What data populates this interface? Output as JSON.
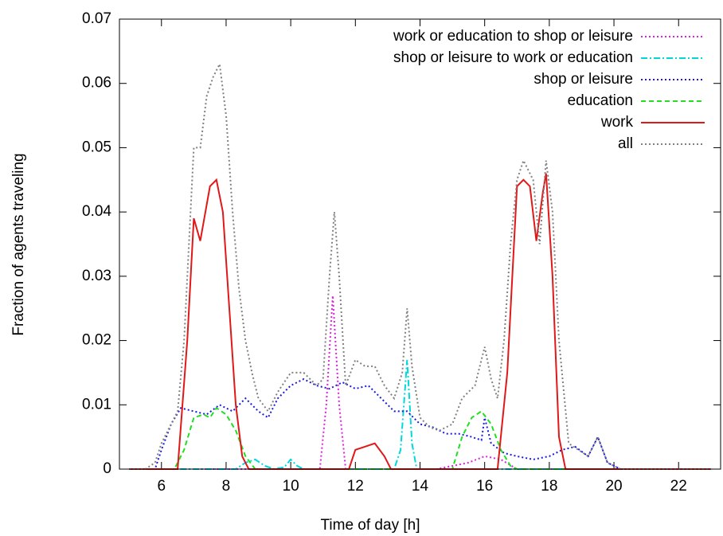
{
  "chart_data": {
    "type": "line",
    "xlabel": "Time of day [h]",
    "ylabel": "Fraction of agents traveling",
    "xlim": [
      4.7,
      23.3
    ],
    "ylim": [
      0,
      0.07
    ],
    "xticks": [
      6,
      8,
      10,
      12,
      14,
      16,
      18,
      20,
      22
    ],
    "yticks": [
      0,
      0.01,
      0.02,
      0.03,
      0.04,
      0.05,
      0.06,
      0.07
    ],
    "legend": "top-right",
    "series": [
      {
        "name": "work or education to shop or leisure",
        "color": "#e020e0",
        "style": "dotted",
        "x": [
          5,
          10.9,
          11.1,
          11.3,
          11.5,
          11.7,
          14.5,
          15.0,
          15.5,
          16.0,
          16.5,
          17.0,
          23
        ],
        "values": [
          0,
          0,
          0.01,
          0.027,
          0.01,
          0,
          0,
          0.0005,
          0.001,
          0.002,
          0.0015,
          0,
          0
        ]
      },
      {
        "name": "shop or leisure to work or education",
        "color": "#00d8e0",
        "style": "dashdot",
        "x": [
          5,
          8.3,
          8.6,
          8.9,
          9.2,
          9.5,
          9.8,
          10.0,
          10.2,
          10.4,
          13.2,
          13.4,
          13.6,
          13.75,
          13.9,
          23
        ],
        "values": [
          0,
          0,
          0.001,
          0.0015,
          0.0005,
          0,
          0.0003,
          0.0015,
          0.0005,
          0,
          0,
          0.003,
          0.017,
          0.004,
          0,
          0
        ]
      },
      {
        "name": "shop or leisure",
        "color": "#1a1ae0",
        "style": "dotted",
        "x": [
          5,
          5.8,
          6.0,
          6.3,
          6.6,
          7.0,
          7.4,
          7.8,
          8.2,
          8.6,
          9.0,
          9.3,
          9.6,
          10.0,
          10.4,
          10.8,
          11.2,
          11.6,
          12.0,
          12.4,
          12.8,
          13.2,
          13.6,
          14.0,
          14.4,
          14.8,
          15.2,
          15.6,
          15.9,
          16.0,
          16.2,
          16.6,
          17.0,
          17.5,
          18.0,
          18.4,
          18.8,
          19.2,
          19.5,
          19.8,
          20.2,
          23
        ],
        "values": [
          0,
          0,
          0.003,
          0.007,
          0.0095,
          0.009,
          0.0085,
          0.01,
          0.009,
          0.011,
          0.009,
          0.008,
          0.011,
          0.013,
          0.014,
          0.013,
          0.0125,
          0.0135,
          0.0125,
          0.013,
          0.011,
          0.009,
          0.009,
          0.007,
          0.0065,
          0.0055,
          0.0055,
          0.005,
          0.0045,
          0.008,
          0.004,
          0.0025,
          0.002,
          0.0015,
          0.002,
          0.003,
          0.0035,
          0.002,
          0.005,
          0.001,
          0,
          0
        ]
      },
      {
        "name": "education",
        "color": "#20e020",
        "style": "dashed",
        "x": [
          5,
          6.4,
          6.7,
          7.0,
          7.3,
          7.5,
          7.7,
          8.0,
          8.3,
          8.6,
          8.9,
          15.0,
          15.3,
          15.6,
          15.9,
          16.2,
          16.5,
          16.8,
          17,
          23
        ],
        "values": [
          0,
          0,
          0.003,
          0.008,
          0.0085,
          0.008,
          0.0095,
          0.0085,
          0.006,
          0.002,
          0,
          0,
          0.005,
          0.008,
          0.009,
          0.007,
          0.003,
          0.0005,
          0,
          0
        ]
      },
      {
        "name": "work",
        "color": "#e01818",
        "style": "solid",
        "x": [
          5,
          6.5,
          6.8,
          7.0,
          7.2,
          7.5,
          7.7,
          7.9,
          8.1,
          8.3,
          8.5,
          8.7,
          11.8,
          12.0,
          12.3,
          12.6,
          12.9,
          13.1,
          16.4,
          16.7,
          17.0,
          17.2,
          17.4,
          17.6,
          17.8,
          17.9,
          18.1,
          18.3,
          18.5,
          23
        ],
        "values": [
          0,
          0,
          0.02,
          0.039,
          0.0355,
          0.044,
          0.045,
          0.04,
          0.025,
          0.01,
          0.002,
          0,
          0,
          0.003,
          0.0035,
          0.004,
          0.002,
          0,
          0,
          0.015,
          0.044,
          0.045,
          0.044,
          0.0355,
          0.043,
          0.046,
          0.03,
          0.005,
          0,
          0
        ]
      },
      {
        "name": "all",
        "color": "#808080",
        "style": "dotted",
        "x": [
          5,
          5.5,
          5.8,
          6.0,
          6.3,
          6.5,
          6.7,
          6.9,
          7.0,
          7.2,
          7.4,
          7.6,
          7.8,
          8.0,
          8.2,
          8.4,
          8.6,
          8.8,
          9.0,
          9.3,
          9.6,
          10.0,
          10.4,
          10.8,
          11.0,
          11.2,
          11.35,
          11.5,
          11.7,
          12.0,
          12.3,
          12.6,
          12.9,
          13.2,
          13.45,
          13.6,
          13.75,
          14.0,
          14.3,
          14.6,
          15.0,
          15.3,
          15.7,
          16.0,
          16.2,
          16.4,
          16.6,
          16.8,
          17.0,
          17.2,
          17.5,
          17.7,
          17.9,
          18.1,
          18.3,
          18.6,
          18.9,
          19.2,
          19.5,
          19.8,
          20.2,
          23
        ],
        "values": [
          0,
          0,
          0.001,
          0.004,
          0.007,
          0.009,
          0.02,
          0.04,
          0.05,
          0.05,
          0.058,
          0.061,
          0.063,
          0.055,
          0.04,
          0.028,
          0.02,
          0.015,
          0.011,
          0.009,
          0.012,
          0.015,
          0.015,
          0.013,
          0.014,
          0.03,
          0.04,
          0.03,
          0.013,
          0.017,
          0.016,
          0.016,
          0.013,
          0.011,
          0.015,
          0.025,
          0.016,
          0.008,
          0.0065,
          0.006,
          0.007,
          0.011,
          0.013,
          0.019,
          0.014,
          0.011,
          0.02,
          0.035,
          0.045,
          0.048,
          0.045,
          0.035,
          0.048,
          0.04,
          0.02,
          0.004,
          0.003,
          0.002,
          0.005,
          0.001,
          0,
          0
        ]
      }
    ]
  }
}
